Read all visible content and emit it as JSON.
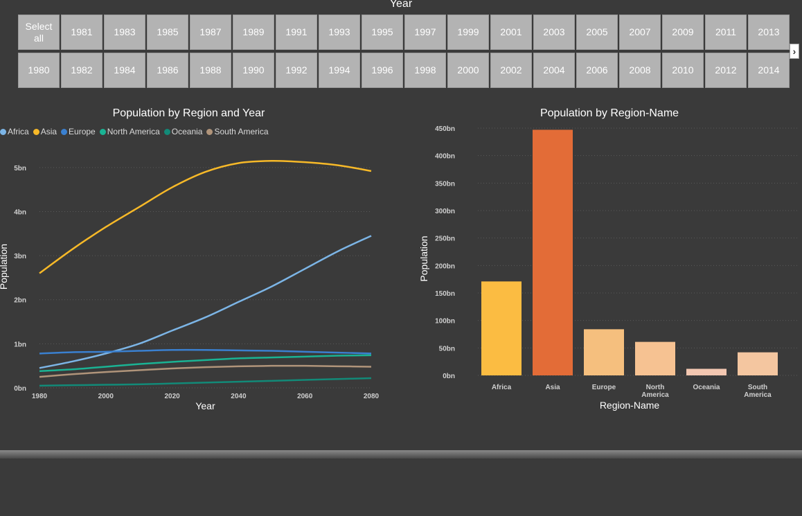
{
  "slicer": {
    "title": "Year",
    "row1": [
      "Select all",
      "1981",
      "1983",
      "1985",
      "1987",
      "1989",
      "1991",
      "1993",
      "1995",
      "1997",
      "1999",
      "2001",
      "2003",
      "2005",
      "2007",
      "2009",
      "2011",
      "2013"
    ],
    "row2": [
      "1980",
      "1982",
      "1984",
      "1986",
      "1988",
      "1990",
      "1992",
      "1994",
      "1996",
      "1998",
      "2000",
      "2002",
      "2004",
      "2006",
      "2008",
      "2010",
      "2012",
      "2014"
    ],
    "scroll_icon": "chevron-right-icon",
    "scroll_glyph": "›"
  },
  "chart_data": [
    {
      "type": "line",
      "title": "Population by Region and Year",
      "xlabel": "Year",
      "ylabel": "Population",
      "xlim": [
        1980,
        2080
      ],
      "ylim": [
        0,
        5.5
      ],
      "x_ticks": [
        "1980",
        "2000",
        "2020",
        "2040",
        "2060",
        "2080"
      ],
      "y_ticks": [
        "0bn",
        "1bn",
        "2bn",
        "3bn",
        "4bn",
        "5bn"
      ],
      "grid": true,
      "legend_position": "top-left",
      "x": [
        1980,
        1990,
        2000,
        2010,
        2020,
        2030,
        2040,
        2050,
        2060,
        2070,
        2080
      ],
      "series": [
        {
          "name": "Africa",
          "color": "#7cb5e6",
          "values": [
            0.45,
            0.6,
            0.78,
            1.0,
            1.3,
            1.6,
            1.95,
            2.3,
            2.7,
            3.1,
            3.45
          ]
        },
        {
          "name": "Asia",
          "color": "#f7b928",
          "values": [
            2.6,
            3.15,
            3.65,
            4.1,
            4.55,
            4.9,
            5.1,
            5.15,
            5.12,
            5.05,
            4.92
          ]
        },
        {
          "name": "Europe",
          "color": "#3a80d0",
          "values": [
            0.78,
            0.81,
            0.82,
            0.84,
            0.86,
            0.86,
            0.85,
            0.84,
            0.82,
            0.8,
            0.78
          ]
        },
        {
          "name": "North America",
          "color": "#1ab394",
          "values": [
            0.38,
            0.42,
            0.48,
            0.54,
            0.59,
            0.63,
            0.67,
            0.69,
            0.71,
            0.73,
            0.74
          ]
        },
        {
          "name": "Oceania",
          "color": "#128a78",
          "values": [
            0.05,
            0.06,
            0.07,
            0.08,
            0.1,
            0.12,
            0.14,
            0.16,
            0.18,
            0.2,
            0.22
          ]
        },
        {
          "name": "South America",
          "color": "#b0947a",
          "values": [
            0.25,
            0.31,
            0.36,
            0.4,
            0.44,
            0.47,
            0.49,
            0.5,
            0.5,
            0.49,
            0.48
          ]
        }
      ]
    },
    {
      "type": "bar",
      "title": "Population by Region-Name",
      "xlabel": "Region-Name",
      "ylabel": "Population",
      "ylim": [
        0,
        450
      ],
      "y_ticks": [
        "0bn",
        "50bn",
        "100bn",
        "150bn",
        "200bn",
        "250bn",
        "300bn",
        "350bn",
        "400bn",
        "450bn"
      ],
      "grid": true,
      "categories": [
        "Africa",
        "Asia",
        "Europe",
        "North America",
        "Oceania",
        "South America"
      ],
      "category_lines": [
        [
          "Africa"
        ],
        [
          "Asia"
        ],
        [
          "Europe"
        ],
        [
          "North",
          "America"
        ],
        [
          "Oceania"
        ],
        [
          "South",
          "America"
        ]
      ],
      "values": [
        171,
        447,
        84,
        61,
        12,
        42
      ],
      "colors": [
        "#fbbc42",
        "#e36c37",
        "#f5bf7e",
        "#f6c292",
        "#f3c7b1",
        "#f4c6a0"
      ]
    }
  ]
}
